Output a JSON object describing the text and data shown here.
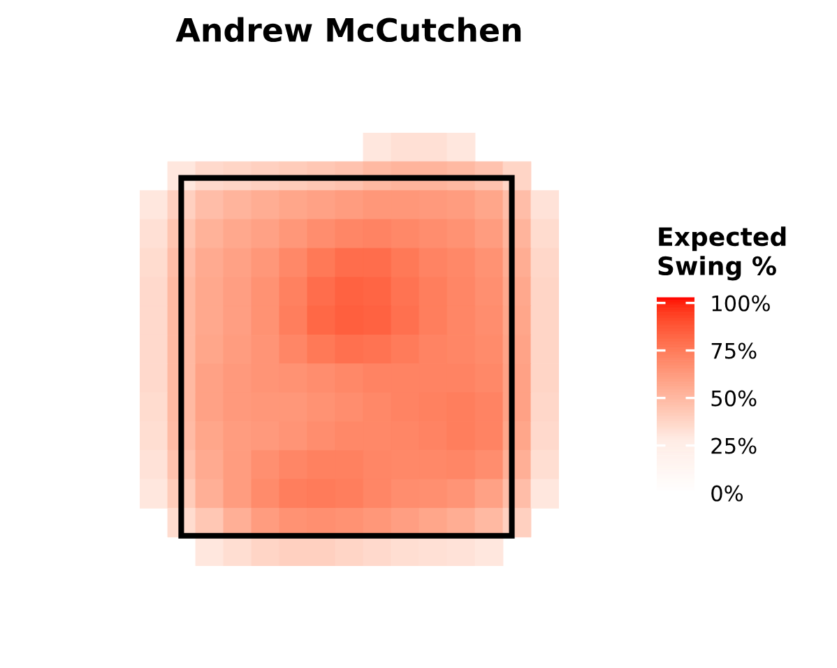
{
  "chart_data": {
    "type": "heatmap",
    "title": "Andrew McCutchen",
    "clabel": "Expected\nSwing %",
    "categories": [
      null,
      null,
      null,
      null,
      null,
      null,
      null,
      null,
      null,
      null,
      null,
      null,
      null,
      null,
      null
    ],
    "y_categories": [
      null,
      null,
      null,
      null,
      null,
      null,
      null,
      null,
      null,
      null,
      null,
      null,
      null,
      null,
      null
    ],
    "cells": [
      [
        null,
        null,
        null,
        null,
        null,
        null,
        null,
        null,
        30,
        33,
        33,
        30,
        null,
        null,
        null
      ],
      [
        null,
        30,
        36,
        38,
        40,
        42,
        44,
        46,
        50,
        52,
        52,
        50,
        46,
        38,
        null
      ],
      [
        30,
        40,
        48,
        52,
        55,
        58,
        60,
        62,
        64,
        64,
        63,
        62,
        58,
        48,
        32
      ],
      [
        33,
        45,
        53,
        57,
        60,
        64,
        68,
        71,
        72,
        70,
        68,
        66,
        62,
        52,
        35
      ],
      [
        35,
        48,
        56,
        60,
        64,
        70,
        76,
        80,
        80,
        76,
        72,
        70,
        66,
        55,
        37
      ],
      [
        36,
        50,
        57,
        61,
        66,
        73,
        80,
        84,
        83,
        78,
        74,
        71,
        67,
        57,
        38
      ],
      [
        36,
        50,
        57,
        61,
        66,
        74,
        82,
        85,
        84,
        79,
        74,
        71,
        68,
        58,
        38
      ],
      [
        36,
        50,
        58,
        62,
        65,
        71,
        76,
        79,
        78,
        75,
        72,
        71,
        69,
        59,
        38
      ],
      [
        36,
        50,
        60,
        63,
        65,
        66,
        68,
        70,
        72,
        72,
        72,
        72,
        70,
        60,
        38
      ],
      [
        35,
        50,
        60,
        63,
        64,
        64,
        66,
        68,
        70,
        72,
        73,
        74,
        72,
        60,
        37
      ],
      [
        34,
        49,
        58,
        62,
        63,
        65,
        68,
        70,
        70,
        71,
        72,
        74,
        72,
        58,
        36
      ],
      [
        32,
        46,
        56,
        62,
        67,
        71,
        73,
        73,
        71,
        70,
        70,
        71,
        68,
        54,
        34
      ],
      [
        30,
        42,
        54,
        62,
        69,
        74,
        75,
        74,
        71,
        68,
        67,
        65,
        60,
        48,
        30
      ],
      [
        null,
        35,
        44,
        54,
        62,
        66,
        67,
        66,
        64,
        61,
        58,
        55,
        50,
        40,
        null
      ],
      [
        null,
        null,
        30,
        34,
        38,
        40,
        40,
        38,
        36,
        34,
        33,
        32,
        30,
        null,
        null
      ]
    ],
    "clim": [
      0,
      103
    ],
    "cticks": [
      {
        "value": 0,
        "label": "0%"
      },
      {
        "value": 25,
        "label": "25%"
      },
      {
        "value": 50,
        "label": "50%"
      },
      {
        "value": 75,
        "label": "75%"
      },
      {
        "value": 100,
        "label": "100%"
      }
    ],
    "tick_labels": false
  }
}
